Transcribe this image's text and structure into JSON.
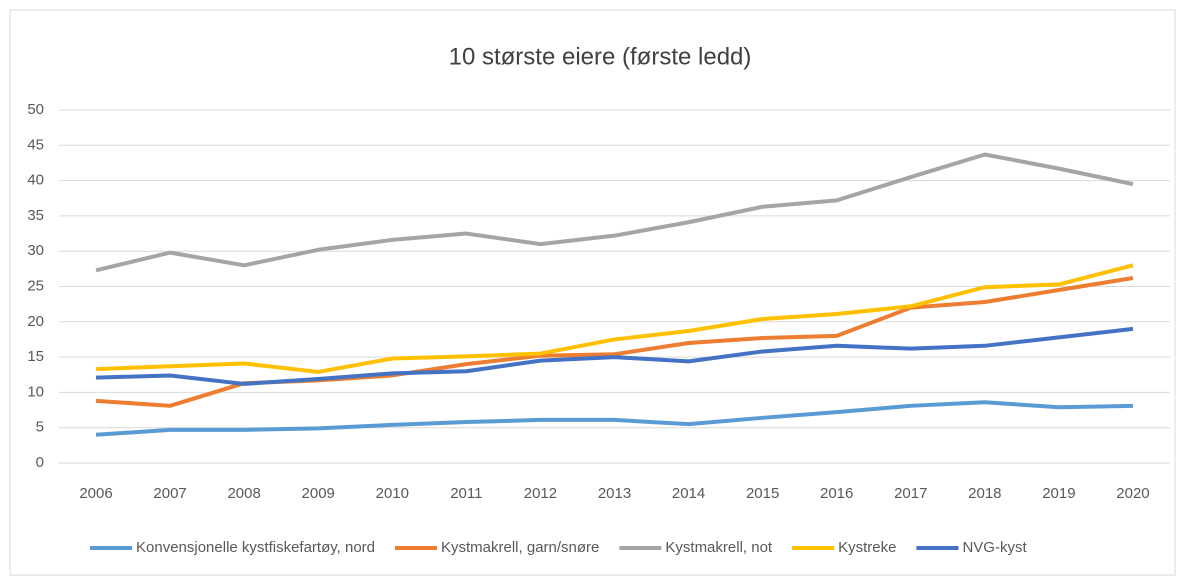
{
  "chart_data": {
    "type": "line",
    "title": "10 største eiere (første ledd)",
    "categories": [
      "2006",
      "2007",
      "2008",
      "2009",
      "2010",
      "2011",
      "2012",
      "2013",
      "2014",
      "2015",
      "2016",
      "2017",
      "2018",
      "2019",
      "2020"
    ],
    "ylim": [
      0,
      50
    ],
    "yticks": [
      0,
      5,
      10,
      15,
      20,
      25,
      30,
      35,
      40,
      45,
      50
    ],
    "grid": true,
    "legend": "bottom",
    "series": [
      {
        "name": "Konvensjonelle kystfiskefartøy, nord",
        "color": "#5b9bd5",
        "values": [
          4,
          4.7,
          4.7,
          4.9,
          5.4,
          5.8,
          6.1,
          6.1,
          5.5,
          6.4,
          7.2,
          8.1,
          8.6,
          7.9,
          8.1
        ]
      },
      {
        "name": "Kystmakrell, garn/snøre",
        "color": "#ed7d31",
        "values": [
          8.8,
          8.1,
          11.3,
          11.7,
          12.4,
          14,
          15.2,
          15.4,
          17,
          17.7,
          18,
          22,
          22.8,
          24.5,
          26.2
        ]
      },
      {
        "name": "Kystmakrell, not",
        "color": "#a5a5a5",
        "values": [
          27.3,
          29.8,
          28,
          30.2,
          31.6,
          32.5,
          31,
          32.2,
          34.1,
          36.3,
          37.2,
          40.5,
          43.7,
          41.7,
          39.5
        ]
      },
      {
        "name": "Kystreke",
        "color": "#ffc000",
        "values": [
          13.3,
          13.7,
          14.1,
          12.9,
          14.8,
          15.1,
          15.5,
          17.5,
          18.7,
          20.4,
          21.1,
          22.2,
          24.9,
          25.3,
          28
        ]
      },
      {
        "name": "NVG-kyst",
        "color": "#4472c4",
        "values": [
          12.1,
          12.4,
          11.2,
          11.9,
          12.7,
          13,
          14.5,
          15,
          14.4,
          15.8,
          16.6,
          16.2,
          16.6,
          17.8,
          19
        ]
      }
    ]
  }
}
